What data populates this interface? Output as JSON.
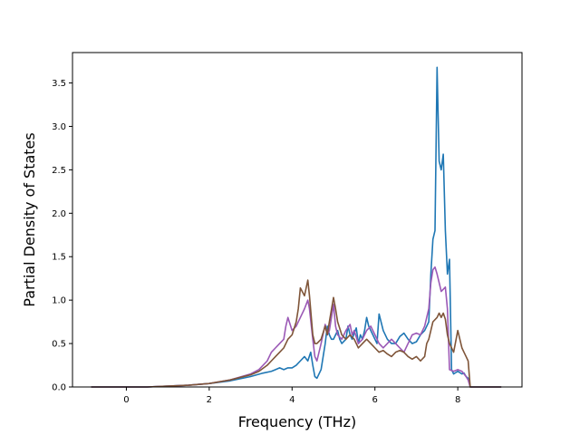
{
  "chart_data": {
    "type": "line",
    "title": "",
    "xlabel": "Frequency (THz)",
    "ylabel": "Partial Density of States",
    "xlim": [
      -1.3,
      9.55
    ],
    "ylim": [
      0,
      3.85
    ],
    "xticks": [
      0,
      2,
      4,
      6,
      8
    ],
    "xtick_labels": [
      "0",
      "2",
      "4",
      "6",
      "8"
    ],
    "yticks": [
      0.0,
      0.5,
      1.0,
      1.5,
      2.0,
      2.5,
      3.0,
      3.5
    ],
    "ytick_labels": [
      "0.0",
      "0.5",
      "1.0",
      "1.5",
      "2.0",
      "2.5",
      "3.0",
      "3.5"
    ],
    "grid": false,
    "legend": "none",
    "series": [
      {
        "color": "#1f77b4",
        "x": [
          -0.85,
          0,
          0.5,
          1.0,
          1.5,
          2.0,
          2.5,
          3.0,
          3.3,
          3.5,
          3.6,
          3.7,
          3.8,
          3.9,
          4.0,
          4.1,
          4.2,
          4.3,
          4.38,
          4.45,
          4.5,
          4.55,
          4.6,
          4.7,
          4.75,
          4.8,
          4.85,
          4.9,
          4.95,
          5.0,
          5.05,
          5.1,
          5.15,
          5.2,
          5.3,
          5.35,
          5.4,
          5.45,
          5.5,
          5.55,
          5.6,
          5.65,
          5.7,
          5.75,
          5.8,
          5.85,
          5.9,
          5.95,
          6.0,
          6.05,
          6.1,
          6.2,
          6.3,
          6.4,
          6.5,
          6.6,
          6.7,
          6.8,
          6.9,
          7.0,
          7.1,
          7.2,
          7.25,
          7.3,
          7.35,
          7.4,
          7.45,
          7.5,
          7.55,
          7.6,
          7.65,
          7.7,
          7.75,
          7.8,
          7.85,
          7.9,
          8.0,
          8.1,
          8.15,
          8.2,
          8.25,
          8.3,
          9.05
        ],
        "y": [
          0,
          0,
          0,
          0.01,
          0.02,
          0.04,
          0.07,
          0.12,
          0.16,
          0.18,
          0.2,
          0.22,
          0.2,
          0.22,
          0.22,
          0.25,
          0.3,
          0.35,
          0.3,
          0.4,
          0.25,
          0.12,
          0.1,
          0.2,
          0.35,
          0.5,
          0.7,
          0.6,
          0.55,
          0.55,
          0.6,
          0.65,
          0.55,
          0.5,
          0.55,
          0.7,
          0.6,
          0.55,
          0.62,
          0.68,
          0.5,
          0.6,
          0.55,
          0.65,
          0.8,
          0.7,
          0.65,
          0.6,
          0.55,
          0.5,
          0.84,
          0.65,
          0.55,
          0.5,
          0.5,
          0.58,
          0.62,
          0.55,
          0.5,
          0.52,
          0.6,
          0.65,
          0.7,
          0.75,
          1.3,
          1.7,
          1.8,
          3.68,
          2.6,
          2.5,
          2.68,
          1.8,
          1.3,
          1.47,
          0.2,
          0.15,
          0.18,
          0.15,
          0.16,
          0.12,
          0.1,
          0.0,
          0.0
        ]
      },
      {
        "color": "#9b59b6",
        "x": [
          -0.85,
          0,
          0.5,
          1.0,
          1.5,
          2.0,
          2.5,
          3.0,
          3.2,
          3.4,
          3.5,
          3.6,
          3.7,
          3.8,
          3.85,
          3.9,
          4.0,
          4.1,
          4.2,
          4.3,
          4.38,
          4.42,
          4.5,
          4.55,
          4.6,
          4.7,
          4.8,
          4.85,
          4.9,
          5.0,
          5.05,
          5.1,
          5.2,
          5.3,
          5.4,
          5.45,
          5.5,
          5.6,
          5.7,
          5.8,
          5.9,
          6.0,
          6.1,
          6.2,
          6.3,
          6.4,
          6.5,
          6.6,
          6.7,
          6.8,
          6.9,
          7.0,
          7.1,
          7.2,
          7.3,
          7.35,
          7.4,
          7.45,
          7.5,
          7.55,
          7.6,
          7.7,
          7.75,
          7.8,
          7.9,
          8.0,
          8.1,
          8.15,
          8.2,
          8.25,
          8.3,
          9.05
        ],
        "y": [
          0,
          0,
          0,
          0.01,
          0.02,
          0.04,
          0.08,
          0.15,
          0.2,
          0.3,
          0.4,
          0.45,
          0.5,
          0.55,
          0.7,
          0.8,
          0.65,
          0.7,
          0.8,
          0.9,
          1.0,
          0.9,
          0.55,
          0.35,
          0.3,
          0.5,
          0.72,
          0.6,
          0.65,
          0.95,
          0.7,
          0.6,
          0.55,
          0.65,
          0.72,
          0.6,
          0.65,
          0.5,
          0.55,
          0.65,
          0.7,
          0.6,
          0.5,
          0.45,
          0.5,
          0.55,
          0.5,
          0.45,
          0.4,
          0.5,
          0.6,
          0.62,
          0.6,
          0.7,
          0.9,
          1.2,
          1.35,
          1.38,
          1.3,
          1.2,
          1.1,
          1.15,
          0.9,
          0.2,
          0.18,
          0.2,
          0.18,
          0.15,
          0.12,
          0.08,
          0.0,
          0.0
        ]
      },
      {
        "color": "#7f5539",
        "x": [
          -0.85,
          0,
          0.5,
          1.0,
          1.5,
          2.0,
          2.5,
          3.0,
          3.2,
          3.4,
          3.5,
          3.6,
          3.7,
          3.8,
          3.9,
          4.0,
          4.1,
          4.15,
          4.2,
          4.3,
          4.38,
          4.42,
          4.5,
          4.55,
          4.6,
          4.7,
          4.8,
          4.85,
          4.9,
          5.0,
          5.05,
          5.1,
          5.2,
          5.3,
          5.4,
          5.5,
          5.6,
          5.7,
          5.8,
          5.9,
          6.0,
          6.1,
          6.2,
          6.3,
          6.4,
          6.5,
          6.6,
          6.7,
          6.8,
          6.9,
          7.0,
          7.1,
          7.2,
          7.25,
          7.3,
          7.4,
          7.5,
          7.55,
          7.6,
          7.65,
          7.7,
          7.75,
          7.8,
          7.85,
          7.9,
          8.0,
          8.1,
          8.15,
          8.2,
          8.25,
          8.3,
          9.05
        ],
        "y": [
          0,
          0,
          0,
          0.01,
          0.02,
          0.04,
          0.08,
          0.14,
          0.18,
          0.25,
          0.3,
          0.35,
          0.4,
          0.45,
          0.55,
          0.6,
          0.75,
          0.9,
          1.14,
          1.05,
          1.23,
          1.05,
          0.6,
          0.5,
          0.5,
          0.55,
          0.7,
          0.6,
          0.75,
          1.03,
          0.9,
          0.75,
          0.6,
          0.55,
          0.6,
          0.55,
          0.45,
          0.5,
          0.55,
          0.5,
          0.45,
          0.4,
          0.42,
          0.38,
          0.35,
          0.4,
          0.42,
          0.4,
          0.35,
          0.32,
          0.35,
          0.3,
          0.35,
          0.5,
          0.55,
          0.75,
          0.8,
          0.85,
          0.8,
          0.85,
          0.78,
          0.6,
          0.5,
          0.45,
          0.4,
          0.65,
          0.45,
          0.4,
          0.35,
          0.3,
          0.0,
          0.0
        ]
      }
    ]
  }
}
